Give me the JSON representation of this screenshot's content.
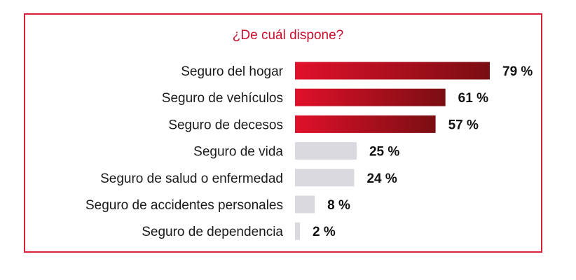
{
  "chart_data": {
    "type": "bar",
    "orientation": "horizontal",
    "title": "¿De cuál dispone?",
    "categories": [
      "Seguro del hogar",
      "Seguro de vehículos",
      "Seguro de decesos",
      "Seguro de vida",
      "Seguro de salud o enfermedad",
      "Seguro de accidentes personales",
      "Seguro de dependencia"
    ],
    "values": [
      79,
      61,
      57,
      25,
      24,
      8,
      2
    ],
    "value_labels": [
      "79 %",
      "61 %",
      "57 %",
      "25 %",
      "24 %",
      "8 %",
      "2 %"
    ],
    "highlighted": [
      true,
      true,
      true,
      false,
      false,
      false,
      false
    ],
    "xlim": [
      0,
      100
    ],
    "grid": false,
    "legend": "none"
  },
  "colors": {
    "highlight_start": "#e0102a",
    "highlight_end": "#7a0e12",
    "muted": "#d9d9df",
    "border": "#d7223a",
    "title": "#c8102e"
  }
}
